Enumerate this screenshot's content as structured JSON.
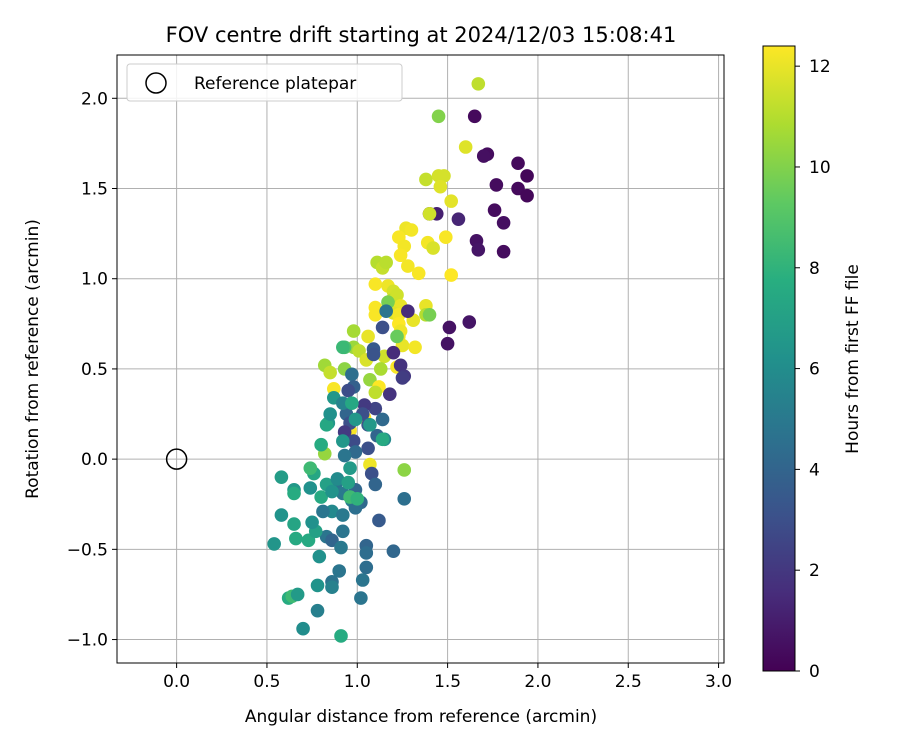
{
  "chart_data": {
    "type": "scatter",
    "title": "FOV centre drift starting at 2024/12/03 15:08:41",
    "xlabel": "Angular distance from reference (arcmin)",
    "ylabel": "Rotation from reference (arcmin)",
    "xlim": [
      -0.33,
      3.03
    ],
    "ylim": [
      -1.13,
      2.24
    ],
    "xticks": [
      0.0,
      0.5,
      1.0,
      1.5,
      2.0,
      2.5,
      3.0
    ],
    "xtick_labels": [
      "0.0",
      "0.5",
      "1.0",
      "1.5",
      "2.0",
      "2.5",
      "3.0"
    ],
    "yticks": [
      -1.0,
      -0.5,
      0.0,
      0.5,
      1.0,
      1.5,
      2.0
    ],
    "ytick_labels": [
      "−1.0",
      "−0.5",
      "0.0",
      "0.5",
      "1.0",
      "1.5",
      "2.0"
    ],
    "grid": true,
    "legend": {
      "location": "top-left",
      "entries": [
        "Reference platepar"
      ]
    },
    "reference_point": {
      "x": 0.0,
      "y": 0.0
    },
    "colorbar": {
      "label": "Hours from first FF file",
      "colormap": "viridis",
      "range": [
        0,
        12.4
      ],
      "ticks": [
        0,
        2,
        4,
        6,
        8,
        10,
        12
      ],
      "tick_labels": [
        "0",
        "2",
        "4",
        "6",
        "8",
        "10",
        "12"
      ]
    },
    "points": [
      {
        "x": 1.65,
        "y": 1.9,
        "c": 0.3
      },
      {
        "x": 1.72,
        "y": 1.69,
        "c": 0.4
      },
      {
        "x": 1.7,
        "y": 1.68,
        "c": 0.5
      },
      {
        "x": 1.89,
        "y": 1.64,
        "c": 0.3
      },
      {
        "x": 1.94,
        "y": 1.57,
        "c": 0.2
      },
      {
        "x": 1.77,
        "y": 1.52,
        "c": 0.4
      },
      {
        "x": 1.89,
        "y": 1.5,
        "c": 0.3
      },
      {
        "x": 1.94,
        "y": 1.46,
        "c": 0.2
      },
      {
        "x": 1.76,
        "y": 1.38,
        "c": 0.4
      },
      {
        "x": 1.81,
        "y": 1.31,
        "c": 0.5
      },
      {
        "x": 1.66,
        "y": 1.21,
        "c": 0.6
      },
      {
        "x": 1.67,
        "y": 1.16,
        "c": 0.7
      },
      {
        "x": 1.81,
        "y": 1.15,
        "c": 0.4
      },
      {
        "x": 1.4,
        "y": 1.36,
        "c": 1.0
      },
      {
        "x": 1.44,
        "y": 1.36,
        "c": 1.1
      },
      {
        "x": 1.56,
        "y": 1.33,
        "c": 1.3
      },
      {
        "x": 1.51,
        "y": 0.73,
        "c": 0.6
      },
      {
        "x": 1.5,
        "y": 0.64,
        "c": 0.6
      },
      {
        "x": 1.62,
        "y": 0.76,
        "c": 0.7
      },
      {
        "x": 1.67,
        "y": 2.08,
        "c": 11.2
      },
      {
        "x": 1.45,
        "y": 1.9,
        "c": 10.0
      },
      {
        "x": 1.6,
        "y": 1.73,
        "c": 11.8
      },
      {
        "x": 1.38,
        "y": 1.55,
        "c": 11.3
      },
      {
        "x": 1.45,
        "y": 1.57,
        "c": 11.6
      },
      {
        "x": 1.48,
        "y": 1.57,
        "c": 11.6
      },
      {
        "x": 1.46,
        "y": 1.51,
        "c": 11.8
      },
      {
        "x": 1.52,
        "y": 1.43,
        "c": 11.9
      },
      {
        "x": 1.4,
        "y": 1.36,
        "c": 11.5
      },
      {
        "x": 1.27,
        "y": 1.28,
        "c": 12.1
      },
      {
        "x": 1.3,
        "y": 1.27,
        "c": 12.2
      },
      {
        "x": 1.23,
        "y": 1.23,
        "c": 12.3
      },
      {
        "x": 1.39,
        "y": 1.2,
        "c": 12.2
      },
      {
        "x": 1.49,
        "y": 1.23,
        "c": 12.3
      },
      {
        "x": 1.26,
        "y": 1.18,
        "c": 12.2
      },
      {
        "x": 1.42,
        "y": 1.17,
        "c": 11.7
      },
      {
        "x": 1.24,
        "y": 1.13,
        "c": 12.3
      },
      {
        "x": 1.11,
        "y": 1.09,
        "c": 11.0
      },
      {
        "x": 1.14,
        "y": 1.06,
        "c": 11.3
      },
      {
        "x": 1.16,
        "y": 1.09,
        "c": 11.1
      },
      {
        "x": 1.28,
        "y": 1.07,
        "c": 12.2
      },
      {
        "x": 1.34,
        "y": 1.03,
        "c": 12.3
      },
      {
        "x": 1.52,
        "y": 1.02,
        "c": 12.4
      },
      {
        "x": 1.1,
        "y": 0.97,
        "c": 12.3
      },
      {
        "x": 1.17,
        "y": 0.96,
        "c": 12.1
      },
      {
        "x": 1.2,
        "y": 0.93,
        "c": 11.6
      },
      {
        "x": 1.19,
        "y": 0.88,
        "c": 11.0
      },
      {
        "x": 1.22,
        "y": 0.91,
        "c": 11.5
      },
      {
        "x": 1.24,
        "y": 0.85,
        "c": 12.0
      },
      {
        "x": 1.1,
        "y": 0.84,
        "c": 12.3
      },
      {
        "x": 1.1,
        "y": 0.8,
        "c": 12.3
      },
      {
        "x": 1.2,
        "y": 0.81,
        "c": 11.8
      },
      {
        "x": 1.23,
        "y": 0.8,
        "c": 12.2
      },
      {
        "x": 1.38,
        "y": 0.85,
        "c": 12.0
      },
      {
        "x": 1.38,
        "y": 0.8,
        "c": 11.0
      },
      {
        "x": 1.31,
        "y": 0.77,
        "c": 12.0
      },
      {
        "x": 1.23,
        "y": 0.75,
        "c": 12.4
      },
      {
        "x": 1.24,
        "y": 0.71,
        "c": 12.1
      },
      {
        "x": 1.23,
        "y": 0.68,
        "c": 12.2
      },
      {
        "x": 1.25,
        "y": 0.63,
        "c": 12.0
      },
      {
        "x": 1.32,
        "y": 0.62,
        "c": 12.2
      },
      {
        "x": 0.98,
        "y": 0.71,
        "c": 10.7
      },
      {
        "x": 1.06,
        "y": 0.68,
        "c": 12.0
      },
      {
        "x": 0.98,
        "y": 0.62,
        "c": 10.5
      },
      {
        "x": 1.01,
        "y": 0.6,
        "c": 11.2
      },
      {
        "x": 1.05,
        "y": 0.55,
        "c": 11.7
      },
      {
        "x": 1.15,
        "y": 0.57,
        "c": 11.5
      },
      {
        "x": 1.13,
        "y": 0.5,
        "c": 10.8
      },
      {
        "x": 1.07,
        "y": 0.44,
        "c": 10.4
      },
      {
        "x": 1.22,
        "y": 0.51,
        "c": 12.3
      },
      {
        "x": 1.12,
        "y": 0.4,
        "c": 12.4
      },
      {
        "x": 1.1,
        "y": 0.37,
        "c": 11.2
      },
      {
        "x": 0.82,
        "y": 0.52,
        "c": 10.6
      },
      {
        "x": 0.85,
        "y": 0.48,
        "c": 11.3
      },
      {
        "x": 0.93,
        "y": 0.5,
        "c": 10.2
      },
      {
        "x": 0.87,
        "y": 0.39,
        "c": 12.3
      },
      {
        "x": 0.93,
        "y": 0.62,
        "c": 8.8
      },
      {
        "x": 1.22,
        "y": 0.68,
        "c": 9.5
      },
      {
        "x": 1.04,
        "y": 0.23,
        "c": 12.4
      },
      {
        "x": 0.96,
        "y": 0.16,
        "c": 12.3
      },
      {
        "x": 1.07,
        "y": -0.03,
        "c": 12.1
      },
      {
        "x": 1.26,
        "y": -0.06,
        "c": 10.2
      },
      {
        "x": 0.82,
        "y": 0.03,
        "c": 10.4
      },
      {
        "x": 1.17,
        "y": 0.87,
        "c": 9.8
      },
      {
        "x": 1.4,
        "y": 0.8,
        "c": 9.8
      },
      {
        "x": 1.16,
        "y": 0.82,
        "c": 4.8
      },
      {
        "x": 1.28,
        "y": 0.82,
        "c": 1.5
      },
      {
        "x": 1.2,
        "y": 0.59,
        "c": 1.5
      },
      {
        "x": 1.24,
        "y": 0.52,
        "c": 1.8
      },
      {
        "x": 1.26,
        "y": 0.46,
        "c": 2.0
      },
      {
        "x": 1.25,
        "y": 0.45,
        "c": 2.2
      },
      {
        "x": 1.18,
        "y": 0.36,
        "c": 1.8
      },
      {
        "x": 1.14,
        "y": 0.73,
        "c": 3.0
      },
      {
        "x": 1.09,
        "y": 0.61,
        "c": 3.5
      },
      {
        "x": 1.09,
        "y": 0.58,
        "c": 3.2
      },
      {
        "x": 1.1,
        "y": 0.28,
        "c": 2.5
      },
      {
        "x": 0.97,
        "y": 0.47,
        "c": 4.5
      },
      {
        "x": 0.98,
        "y": 0.4,
        "c": 3.8
      },
      {
        "x": 0.95,
        "y": 0.38,
        "c": 2.9
      },
      {
        "x": 1.04,
        "y": 0.3,
        "c": 2.1
      },
      {
        "x": 1.03,
        "y": 0.25,
        "c": 3.0
      },
      {
        "x": 0.94,
        "y": 0.25,
        "c": 4.0
      },
      {
        "x": 0.96,
        "y": 0.2,
        "c": 3.0
      },
      {
        "x": 0.93,
        "y": 0.15,
        "c": 2.1
      },
      {
        "x": 0.98,
        "y": 0.1,
        "c": 2.8
      },
      {
        "x": 1.06,
        "y": 0.19,
        "c": 3.3
      },
      {
        "x": 1.14,
        "y": 0.22,
        "c": 4.2
      },
      {
        "x": 1.11,
        "y": 0.13,
        "c": 4.0
      },
      {
        "x": 1.15,
        "y": 0.11,
        "c": 5.8
      },
      {
        "x": 1.06,
        "y": 0.06,
        "c": 3.0
      },
      {
        "x": 0.99,
        "y": 0.04,
        "c": 4.2
      },
      {
        "x": 0.92,
        "y": 0.1,
        "c": 6.5
      },
      {
        "x": 0.93,
        "y": 0.02,
        "c": 4.8
      },
      {
        "x": 0.96,
        "y": -0.05,
        "c": 6.7
      },
      {
        "x": 1.08,
        "y": -0.08,
        "c": 3.0
      },
      {
        "x": 1.1,
        "y": -0.14,
        "c": 4.0
      },
      {
        "x": 0.99,
        "y": -0.17,
        "c": 4.1
      },
      {
        "x": 0.88,
        "y": -0.14,
        "c": 4.7
      },
      {
        "x": 0.92,
        "y": -0.19,
        "c": 5.0
      },
      {
        "x": 0.97,
        "y": -0.23,
        "c": 5.2
      },
      {
        "x": 1.02,
        "y": -0.24,
        "c": 4.2
      },
      {
        "x": 0.99,
        "y": -0.27,
        "c": 4.5
      },
      {
        "x": 0.86,
        "y": -0.29,
        "c": 5.8
      },
      {
        "x": 0.81,
        "y": -0.29,
        "c": 4.8
      },
      {
        "x": 0.92,
        "y": -0.31,
        "c": 5.0
      },
      {
        "x": 1.12,
        "y": -0.34,
        "c": 3.5
      },
      {
        "x": 1.26,
        "y": -0.22,
        "c": 4.5
      },
      {
        "x": 0.92,
        "y": -0.4,
        "c": 4.8
      },
      {
        "x": 0.83,
        "y": -0.43,
        "c": 4.8
      },
      {
        "x": 0.86,
        "y": -0.45,
        "c": 4.0
      },
      {
        "x": 0.91,
        "y": -0.49,
        "c": 5.0
      },
      {
        "x": 1.05,
        "y": -0.48,
        "c": 4.0
      },
      {
        "x": 1.05,
        "y": -0.52,
        "c": 4.4
      },
      {
        "x": 1.2,
        "y": -0.51,
        "c": 4.1
      },
      {
        "x": 0.79,
        "y": -0.54,
        "c": 6.2
      },
      {
        "x": 0.9,
        "y": -0.62,
        "c": 4.8
      },
      {
        "x": 1.05,
        "y": -0.6,
        "c": 4.4
      },
      {
        "x": 1.03,
        "y": -0.67,
        "c": 4.8
      },
      {
        "x": 0.86,
        "y": -0.68,
        "c": 4.7
      },
      {
        "x": 0.86,
        "y": -0.71,
        "c": 5.4
      },
      {
        "x": 0.78,
        "y": -0.7,
        "c": 6.3
      },
      {
        "x": 0.78,
        "y": -0.84,
        "c": 5.3
      },
      {
        "x": 1.02,
        "y": -0.77,
        "c": 4.8
      },
      {
        "x": 0.7,
        "y": -0.94,
        "c": 6.0
      },
      {
        "x": 0.91,
        "y": -0.98,
        "c": 7.6
      },
      {
        "x": 0.62,
        "y": -0.77,
        "c": 7.6
      },
      {
        "x": 0.64,
        "y": -0.76,
        "c": 8.4
      },
      {
        "x": 0.67,
        "y": -0.75,
        "c": 6.7
      },
      {
        "x": 0.54,
        "y": -0.47,
        "c": 6.4
      },
      {
        "x": 0.66,
        "y": -0.44,
        "c": 7.5
      },
      {
        "x": 0.73,
        "y": -0.45,
        "c": 7.5
      },
      {
        "x": 0.77,
        "y": -0.4,
        "c": 7.0
      },
      {
        "x": 0.75,
        "y": -0.35,
        "c": 6.2
      },
      {
        "x": 0.65,
        "y": -0.36,
        "c": 7.2
      },
      {
        "x": 0.58,
        "y": -0.31,
        "c": 6.3
      },
      {
        "x": 0.8,
        "y": -0.21,
        "c": 7.5
      },
      {
        "x": 0.74,
        "y": -0.16,
        "c": 6.2
      },
      {
        "x": 0.65,
        "y": -0.17,
        "c": 6.6
      },
      {
        "x": 0.65,
        "y": -0.19,
        "c": 7.6
      },
      {
        "x": 0.58,
        "y": -0.1,
        "c": 6.8
      },
      {
        "x": 0.76,
        "y": -0.08,
        "c": 7.3
      },
      {
        "x": 0.74,
        "y": -0.05,
        "c": 8.4
      },
      {
        "x": 0.83,
        "y": -0.14,
        "c": 7.0
      },
      {
        "x": 0.86,
        "y": -0.18,
        "c": 6.3
      },
      {
        "x": 0.89,
        "y": -0.11,
        "c": 5.9
      },
      {
        "x": 0.95,
        "y": -0.13,
        "c": 7.0
      },
      {
        "x": 0.96,
        "y": -0.21,
        "c": 8.4
      },
      {
        "x": 1.0,
        "y": -0.22,
        "c": 8.0
      },
      {
        "x": 0.8,
        "y": 0.08,
        "c": 7.6
      },
      {
        "x": 0.84,
        "y": 0.2,
        "c": 6.5
      },
      {
        "x": 0.83,
        "y": 0.19,
        "c": 7.4
      },
      {
        "x": 0.85,
        "y": 0.25,
        "c": 6.2
      },
      {
        "x": 0.87,
        "y": 0.34,
        "c": 6.5
      },
      {
        "x": 0.92,
        "y": 0.31,
        "c": 5.5
      },
      {
        "x": 0.97,
        "y": 0.31,
        "c": 7.4
      },
      {
        "x": 0.99,
        "y": 0.22,
        "c": 6.5
      },
      {
        "x": 1.07,
        "y": 0.19,
        "c": 6.6
      },
      {
        "x": 1.14,
        "y": 0.11,
        "c": 7.5
      },
      {
        "x": 0.92,
        "y": 0.62,
        "c": 8.3
      }
    ]
  }
}
